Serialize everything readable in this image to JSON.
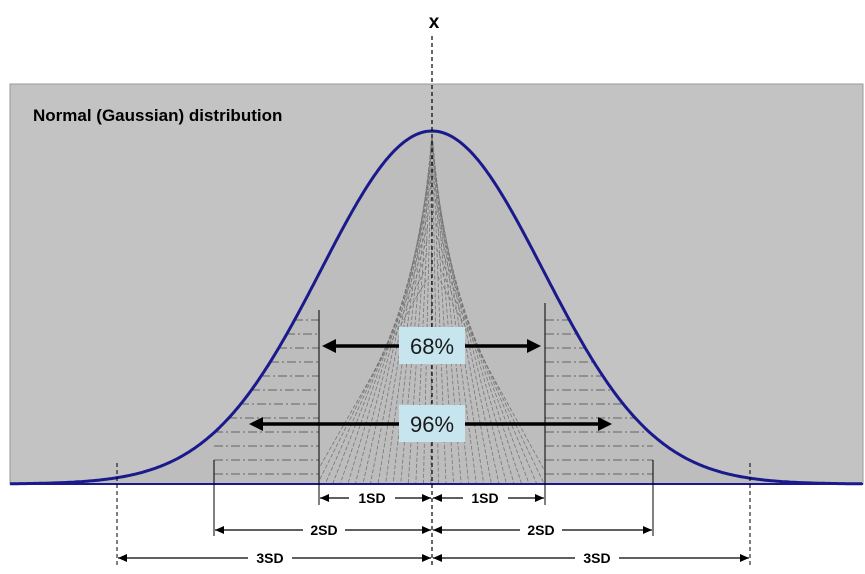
{
  "chart_data": {
    "type": "diagram",
    "title": "Normal (Gaussian) distribution",
    "axis_label": "x",
    "intervals": [
      {
        "label": "68%",
        "span_sd": 1
      },
      {
        "label": "96%",
        "span_sd": 2
      }
    ],
    "sd_labels": [
      {
        "label": "1SD",
        "k": 1
      },
      {
        "label": "2SD",
        "k": 2
      },
      {
        "label": "3SD",
        "k": 3
      }
    ]
  },
  "colors": {
    "background": "#c3c3c3",
    "curve": "#1a1a8c",
    "label_box": "#c6e5ef"
  }
}
